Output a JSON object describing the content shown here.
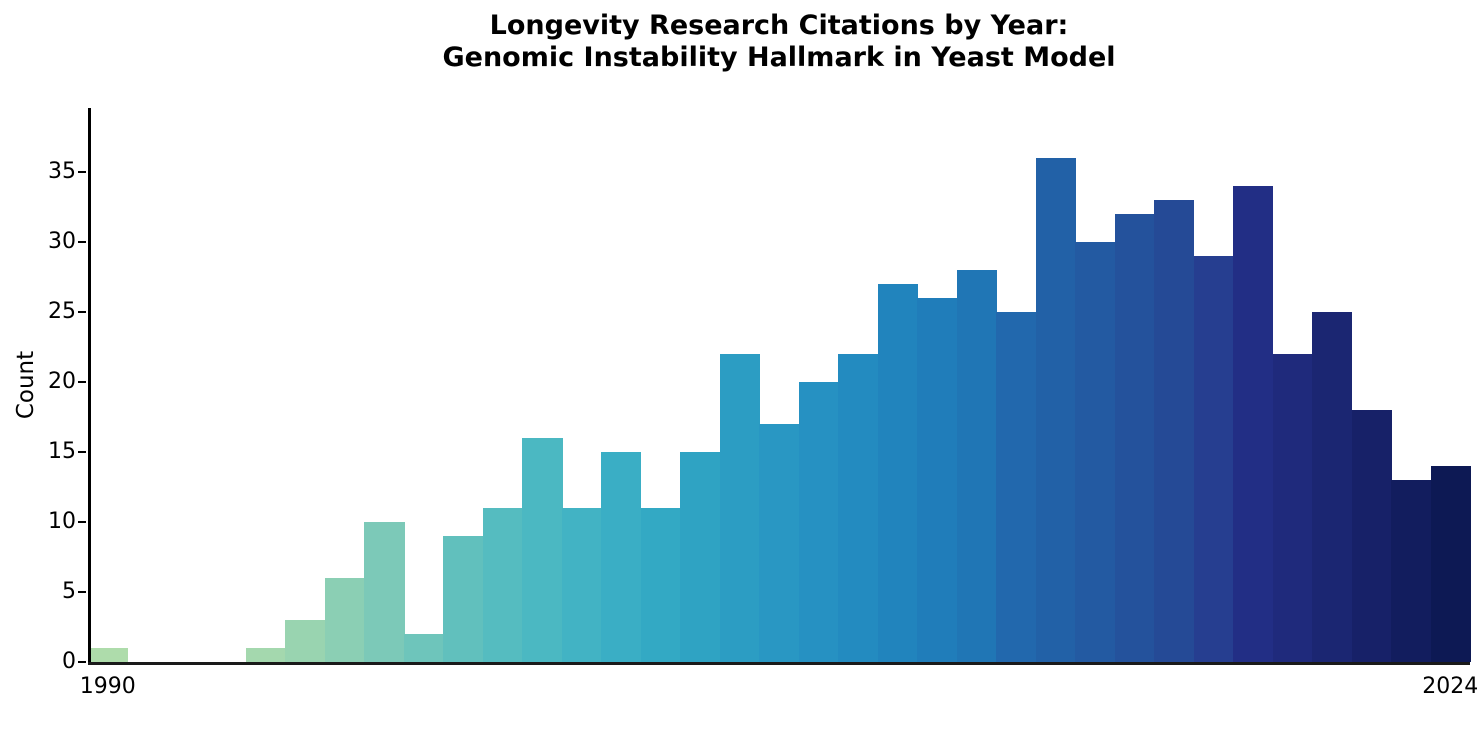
{
  "title": {
    "line1": "Longevity Research Citations by Year:",
    "line2": "Genomic Instability Hallmark in Yeast Model"
  },
  "chart_data": {
    "type": "bar",
    "title": "Longevity Research Citations by Year:\nGenomic Instability Hallmark in Yeast Model",
    "xlabel": "",
    "ylabel": "Count",
    "x": [
      1990,
      1991,
      1992,
      1993,
      1994,
      1995,
      1996,
      1997,
      1998,
      1999,
      2000,
      2001,
      2002,
      2003,
      2004,
      2005,
      2006,
      2007,
      2008,
      2009,
      2010,
      2011,
      2012,
      2013,
      2014,
      2015,
      2016,
      2017,
      2018,
      2019,
      2020,
      2021,
      2022,
      2023,
      2024
    ],
    "values": [
      1,
      0,
      0,
      0,
      1,
      3,
      6,
      10,
      2,
      9,
      11,
      16,
      11,
      15,
      11,
      15,
      22,
      17,
      20,
      22,
      27,
      26,
      28,
      25,
      36,
      30,
      32,
      33,
      29,
      34,
      22,
      25,
      18,
      13,
      14
    ],
    "bar_colors": [
      "#aedcab",
      "#abdaac",
      "#a8daad",
      "#a6d9ad",
      "#a4d8ae",
      "#99d4b0",
      "#8bcfb4",
      "#7cc9b8",
      "#6ec5bb",
      "#61c0bd",
      "#55bcc0",
      "#4bb8c2",
      "#42b3c4",
      "#3aaec5",
      "#33a9c4",
      "#2fa3c3",
      "#2c9dc3",
      "#2997c3",
      "#2691c2",
      "#238bc0",
      "#2184bd",
      "#207dba",
      "#2076b5",
      "#2268ad",
      "#2261a7",
      "#235aa2",
      "#24529c",
      "#254a96",
      "#263e90",
      "#222e85",
      "#1f2a7c",
      "#1b2672",
      "#172168",
      "#121d5e",
      "#0d1954"
    ],
    "ylim": [
      0,
      39.57
    ],
    "yticks": [
      0,
      5,
      10,
      15,
      20,
      25,
      30,
      35
    ],
    "ytick_labels": [
      "0",
      "5",
      "10",
      "15",
      "20",
      "25",
      "30",
      "35"
    ],
    "xticks": [
      {
        "label": "1990",
        "bin_index": 0
      },
      {
        "label": "2024",
        "bin_index": 34
      }
    ],
    "grid": false,
    "legend": null,
    "spine_color": "#000000",
    "background_color": "#ffffff"
  }
}
